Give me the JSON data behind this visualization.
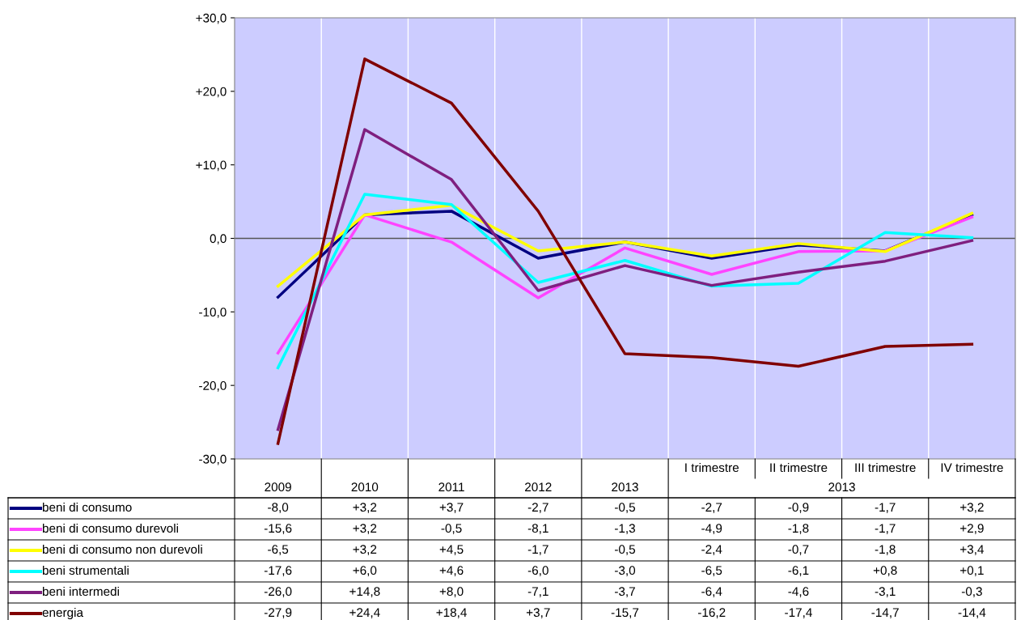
{
  "chart_data": {
    "type": "line",
    "categories": [
      "2009",
      "2010",
      "2011",
      "2012",
      "2013",
      "I trimestre",
      "II trimestre",
      "III trimestre",
      "IV trimestre"
    ],
    "series": [
      {
        "name": "beni di consumo",
        "color": "#000080",
        "values": [
          -8.0,
          3.2,
          3.7,
          -2.7,
          -0.5,
          -2.7,
          -0.9,
          -1.7,
          3.2
        ],
        "value_labels": [
          "-8,0",
          "+3,2",
          "+3,7",
          "-2,7",
          "-0,5",
          "-2,7",
          "-0,9",
          "-1,7",
          "+3,2"
        ]
      },
      {
        "name": "beni di consumo durevoli",
        "color": "#ff44ff",
        "values": [
          -15.6,
          3.2,
          -0.5,
          -8.1,
          -1.3,
          -4.9,
          -1.8,
          -1.7,
          2.9
        ],
        "value_labels": [
          "-15,6",
          "+3,2",
          "-0,5",
          "-8,1",
          "-1,3",
          "-4,9",
          "-1,8",
          "-1,7",
          "+2,9"
        ]
      },
      {
        "name": "beni di consumo non durevoli",
        "color": "#ffff00",
        "values": [
          -6.5,
          3.2,
          4.5,
          -1.7,
          -0.5,
          -2.4,
          -0.7,
          -1.8,
          3.4
        ],
        "value_labels": [
          "-6,5",
          "+3,2",
          "+4,5",
          "-1,7",
          "-0,5",
          "-2,4",
          "-0,7",
          "-1,8",
          "+3,4"
        ]
      },
      {
        "name": "beni strumentali",
        "color": "#00ffff",
        "values": [
          -17.6,
          6.0,
          4.6,
          -6.0,
          -3.0,
          -6.5,
          -6.1,
          0.8,
          0.1
        ],
        "value_labels": [
          "-17,6",
          "+6,0",
          "+4,6",
          "-6,0",
          "-3,0",
          "-6,5",
          "-6,1",
          "+0,8",
          "+0,1"
        ]
      },
      {
        "name": "beni intermedi",
        "color": "#7f1f7f",
        "values": [
          -26.0,
          14.8,
          8.0,
          -7.1,
          -3.7,
          -6.4,
          -4.6,
          -3.1,
          -0.3
        ],
        "value_labels": [
          "-26,0",
          "+14,8",
          "+8,0",
          "-7,1",
          "-3,7",
          "-6,4",
          "-4,6",
          "-3,1",
          "-0,3"
        ]
      },
      {
        "name": "energia",
        "color": "#800000",
        "values": [
          -27.9,
          24.4,
          18.4,
          3.7,
          -15.7,
          -16.2,
          -17.4,
          -14.7,
          -14.4
        ],
        "value_labels": [
          "-27,9",
          "+24,4",
          "+18,4",
          "+3,7",
          "-15,7",
          "-16,2",
          "-17,4",
          "-14,7",
          "-14,4"
        ]
      }
    ],
    "ylim": [
      -30,
      30
    ],
    "yticks": [
      {
        "value": -30,
        "label": "-30,0"
      },
      {
        "value": -20,
        "label": "-20,0"
      },
      {
        "value": -10,
        "label": "-10,0"
      },
      {
        "value": 0,
        "label": "0,0"
      },
      {
        "value": 10,
        "label": "+10,0"
      },
      {
        "value": 20,
        "label": "+20,0"
      },
      {
        "value": 30,
        "label": "+30,0"
      }
    ],
    "ref_lines": [
      {
        "axis": "y",
        "value": 0,
        "color": "#555555"
      }
    ],
    "grid": "x",
    "legend": "bottom",
    "marker": "none",
    "line_style": "solid",
    "annotations": [
      "2013"
    ]
  }
}
